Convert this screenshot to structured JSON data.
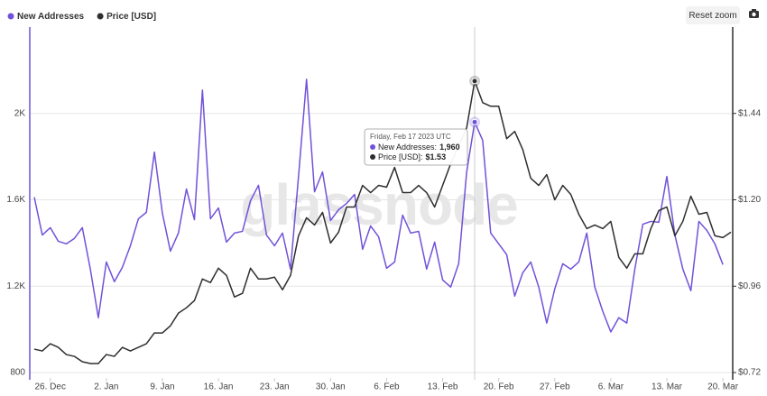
{
  "chart_data": {
    "type": "line",
    "watermark": "glassnode",
    "reset_button": "Reset zoom",
    "x": [
      "2022-12-24",
      "2022-12-25",
      "2022-12-26",
      "2022-12-27",
      "2022-12-28",
      "2022-12-29",
      "2022-12-30",
      "2022-12-31",
      "2023-01-01",
      "2023-01-02",
      "2023-01-03",
      "2023-01-04",
      "2023-01-05",
      "2023-01-06",
      "2023-01-07",
      "2023-01-08",
      "2023-01-09",
      "2023-01-10",
      "2023-01-11",
      "2023-01-12",
      "2023-01-13",
      "2023-01-14",
      "2023-01-15",
      "2023-01-16",
      "2023-01-17",
      "2023-01-18",
      "2023-01-19",
      "2023-01-20",
      "2023-01-21",
      "2023-01-22",
      "2023-01-23",
      "2023-01-24",
      "2023-01-25",
      "2023-01-26",
      "2023-01-27",
      "2023-01-28",
      "2023-01-29",
      "2023-01-30",
      "2023-01-31",
      "2023-02-01",
      "2023-02-02",
      "2023-02-03",
      "2023-02-04",
      "2023-02-05",
      "2023-02-06",
      "2023-02-07",
      "2023-02-08",
      "2023-02-09",
      "2023-02-10",
      "2023-02-11",
      "2023-02-12",
      "2023-02-13",
      "2023-02-14",
      "2023-02-15",
      "2023-02-16",
      "2023-02-17",
      "2023-02-18",
      "2023-02-19",
      "2023-02-20",
      "2023-02-21",
      "2023-02-22",
      "2023-02-23",
      "2023-02-24",
      "2023-02-25",
      "2023-02-26",
      "2023-02-27",
      "2023-02-28",
      "2023-03-01",
      "2023-03-02",
      "2023-03-03",
      "2023-03-04",
      "2023-03-05",
      "2023-03-06",
      "2023-03-07",
      "2023-03-08",
      "2023-03-09",
      "2023-03-10",
      "2023-03-11",
      "2023-03-12",
      "2023-03-13",
      "2023-03-14",
      "2023-03-15",
      "2023-03-16",
      "2023-03-17",
      "2023-03-18",
      "2023-03-19",
      "2023-03-20",
      "2023-03-21"
    ],
    "series": [
      {
        "name": "New Addresses",
        "color": "#7152d9",
        "axis": "y",
        "values": [
          1612,
          1437,
          1471,
          1408,
          1396,
          1421,
          1471,
          1279,
          1054,
          1312,
          1221,
          1287,
          1387,
          1512,
          1542,
          1821,
          1537,
          1362,
          1446,
          1650,
          1508,
          2108,
          1512,
          1562,
          1404,
          1446,
          1454,
          1596,
          1667,
          1437,
          1387,
          1446,
          1279,
          1708,
          2158,
          1637,
          1729,
          1504,
          1554,
          1583,
          1625,
          1371,
          1479,
          1429,
          1283,
          1312,
          1529,
          1446,
          1454,
          1279,
          1404,
          1229,
          1196,
          1304,
          1729,
          1960,
          1875,
          1446,
          1396,
          1346,
          1154,
          1262,
          1312,
          1196,
          1029,
          1187,
          1304,
          1279,
          1312,
          1446,
          1196,
          1083,
          988,
          1054,
          1029,
          1279,
          1487,
          1500,
          1496,
          1708,
          1437,
          1279,
          1179,
          1500,
          1458,
          1396,
          1300,
          null
        ]
      },
      {
        "name": "Price [USD]",
        "color": "#2e2e2e",
        "axis": "y2",
        "values": [
          0.785,
          0.78,
          0.8,
          0.79,
          0.77,
          0.765,
          0.75,
          0.745,
          0.745,
          0.77,
          0.765,
          0.79,
          0.78,
          0.79,
          0.8,
          0.83,
          0.83,
          0.85,
          0.885,
          0.9,
          0.92,
          0.98,
          0.97,
          1.01,
          0.99,
          0.93,
          0.94,
          1.01,
          0.98,
          0.98,
          0.985,
          0.95,
          0.99,
          1.1,
          1.15,
          1.13,
          1.165,
          1.08,
          1.11,
          1.18,
          1.18,
          1.24,
          1.22,
          1.24,
          1.235,
          1.29,
          1.22,
          1.22,
          1.24,
          1.22,
          1.18,
          1.24,
          1.3,
          1.35,
          1.4,
          1.53,
          1.47,
          1.46,
          1.46,
          1.37,
          1.39,
          1.34,
          1.26,
          1.24,
          1.27,
          1.2,
          1.24,
          1.215,
          1.16,
          1.12,
          1.13,
          1.12,
          1.14,
          1.04,
          1.01,
          1.05,
          1.05,
          1.12,
          1.17,
          1.18,
          1.1,
          1.14,
          1.21,
          1.16,
          1.165,
          1.1,
          1.095,
          1.11
        ]
      }
    ],
    "xlim": [
      "2022-12-24",
      "2023-03-21"
    ],
    "xticks": [
      {
        "value": "2022-12-26",
        "label": "26. Dec"
      },
      {
        "value": "2023-01-02",
        "label": "2. Jan"
      },
      {
        "value": "2023-01-09",
        "label": "9. Jan"
      },
      {
        "value": "2023-01-16",
        "label": "16. Jan"
      },
      {
        "value": "2023-01-23",
        "label": "23. Jan"
      },
      {
        "value": "2023-01-30",
        "label": "30. Jan"
      },
      {
        "value": "2023-02-06",
        "label": "6. Feb"
      },
      {
        "value": "2023-02-13",
        "label": "13. Feb"
      },
      {
        "value": "2023-02-20",
        "label": "20. Feb"
      },
      {
        "value": "2023-02-27",
        "label": "27. Feb"
      },
      {
        "value": "2023-03-06",
        "label": "6. Mar"
      },
      {
        "value": "2023-03-13",
        "label": "13. Mar"
      },
      {
        "value": "2023-03-20",
        "label": "20. Mar"
      }
    ],
    "ylim": [
      800,
      2400
    ],
    "yticks": [
      800,
      {
        "value": 1200,
        "label": "1.2K"
      },
      {
        "value": 1600,
        "label": "1.6K"
      },
      {
        "value": 2000,
        "label": "2K"
      }
    ],
    "y2lim": [
      0.72,
      1.68
    ],
    "y2ticks": [
      {
        "value": 0.72,
        "label": "$0.72"
      },
      {
        "value": 0.96,
        "label": "$0.96"
      },
      {
        "value": 1.2,
        "label": "$1.20"
      },
      {
        "value": 1.44,
        "label": "$1.44"
      }
    ],
    "grid": true,
    "legend": "top-left",
    "tooltip": {
      "x": "2023-02-17",
      "title": "Friday, Feb 17 2023 UTC",
      "items": [
        {
          "name": "New Addresses:",
          "value_label": "1,960"
        },
        {
          "name": "Price [USD]:",
          "value_label": "$1.53"
        }
      ]
    }
  }
}
